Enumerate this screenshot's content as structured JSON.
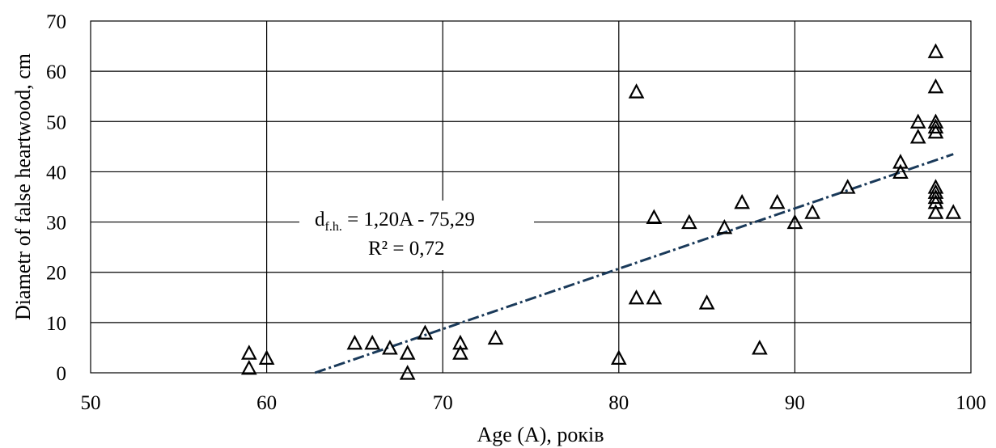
{
  "chart_data": {
    "type": "scatter",
    "xlabel": "Age (A), років",
    "ylabel": "Diametr of false heartwood, cm",
    "xlim": [
      50,
      100
    ],
    "ylim": [
      0,
      70
    ],
    "x_ticks": [
      "50",
      "60",
      "70",
      "80",
      "90",
      "100"
    ],
    "y_ticks": [
      "0",
      "10",
      "20",
      "30",
      "40",
      "50",
      "60",
      "70"
    ],
    "grid": true,
    "marker": "triangle",
    "series": [
      {
        "points": [
          [
            59,
            4
          ],
          [
            59,
            1
          ],
          [
            60,
            3
          ],
          [
            65,
            6
          ],
          [
            66,
            6
          ],
          [
            67,
            5
          ],
          [
            68,
            4
          ],
          [
            68,
            0
          ],
          [
            69,
            8
          ],
          [
            71,
            6
          ],
          [
            71,
            4
          ],
          [
            73,
            7
          ],
          [
            80,
            3
          ],
          [
            81,
            56
          ],
          [
            81,
            15
          ],
          [
            82,
            15
          ],
          [
            82,
            31
          ],
          [
            84,
            30
          ],
          [
            85,
            14
          ],
          [
            86,
            29
          ],
          [
            87,
            34
          ],
          [
            88,
            5
          ],
          [
            89,
            34
          ],
          [
            90,
            30
          ],
          [
            91,
            32
          ],
          [
            93,
            37
          ],
          [
            96,
            42
          ],
          [
            96,
            40
          ],
          [
            97,
            50
          ],
          [
            97,
            47
          ],
          [
            98,
            64
          ],
          [
            98,
            57
          ],
          [
            98,
            50
          ],
          [
            98,
            49
          ],
          [
            98,
            48
          ],
          [
            98,
            37
          ],
          [
            98,
            36
          ],
          [
            98,
            35
          ],
          [
            98,
            34
          ],
          [
            98,
            32
          ],
          [
            99,
            32
          ]
        ]
      }
    ],
    "trendline": {
      "slope": 1.2,
      "intercept": -75.29,
      "x_range": [
        62.74,
        99
      ]
    },
    "annotation": {
      "eq_prefix": "d",
      "eq_sub": "f.h.",
      "eq_rest": " = 1,20A - 75,29",
      "r2": "R² = 0,72"
    }
  }
}
